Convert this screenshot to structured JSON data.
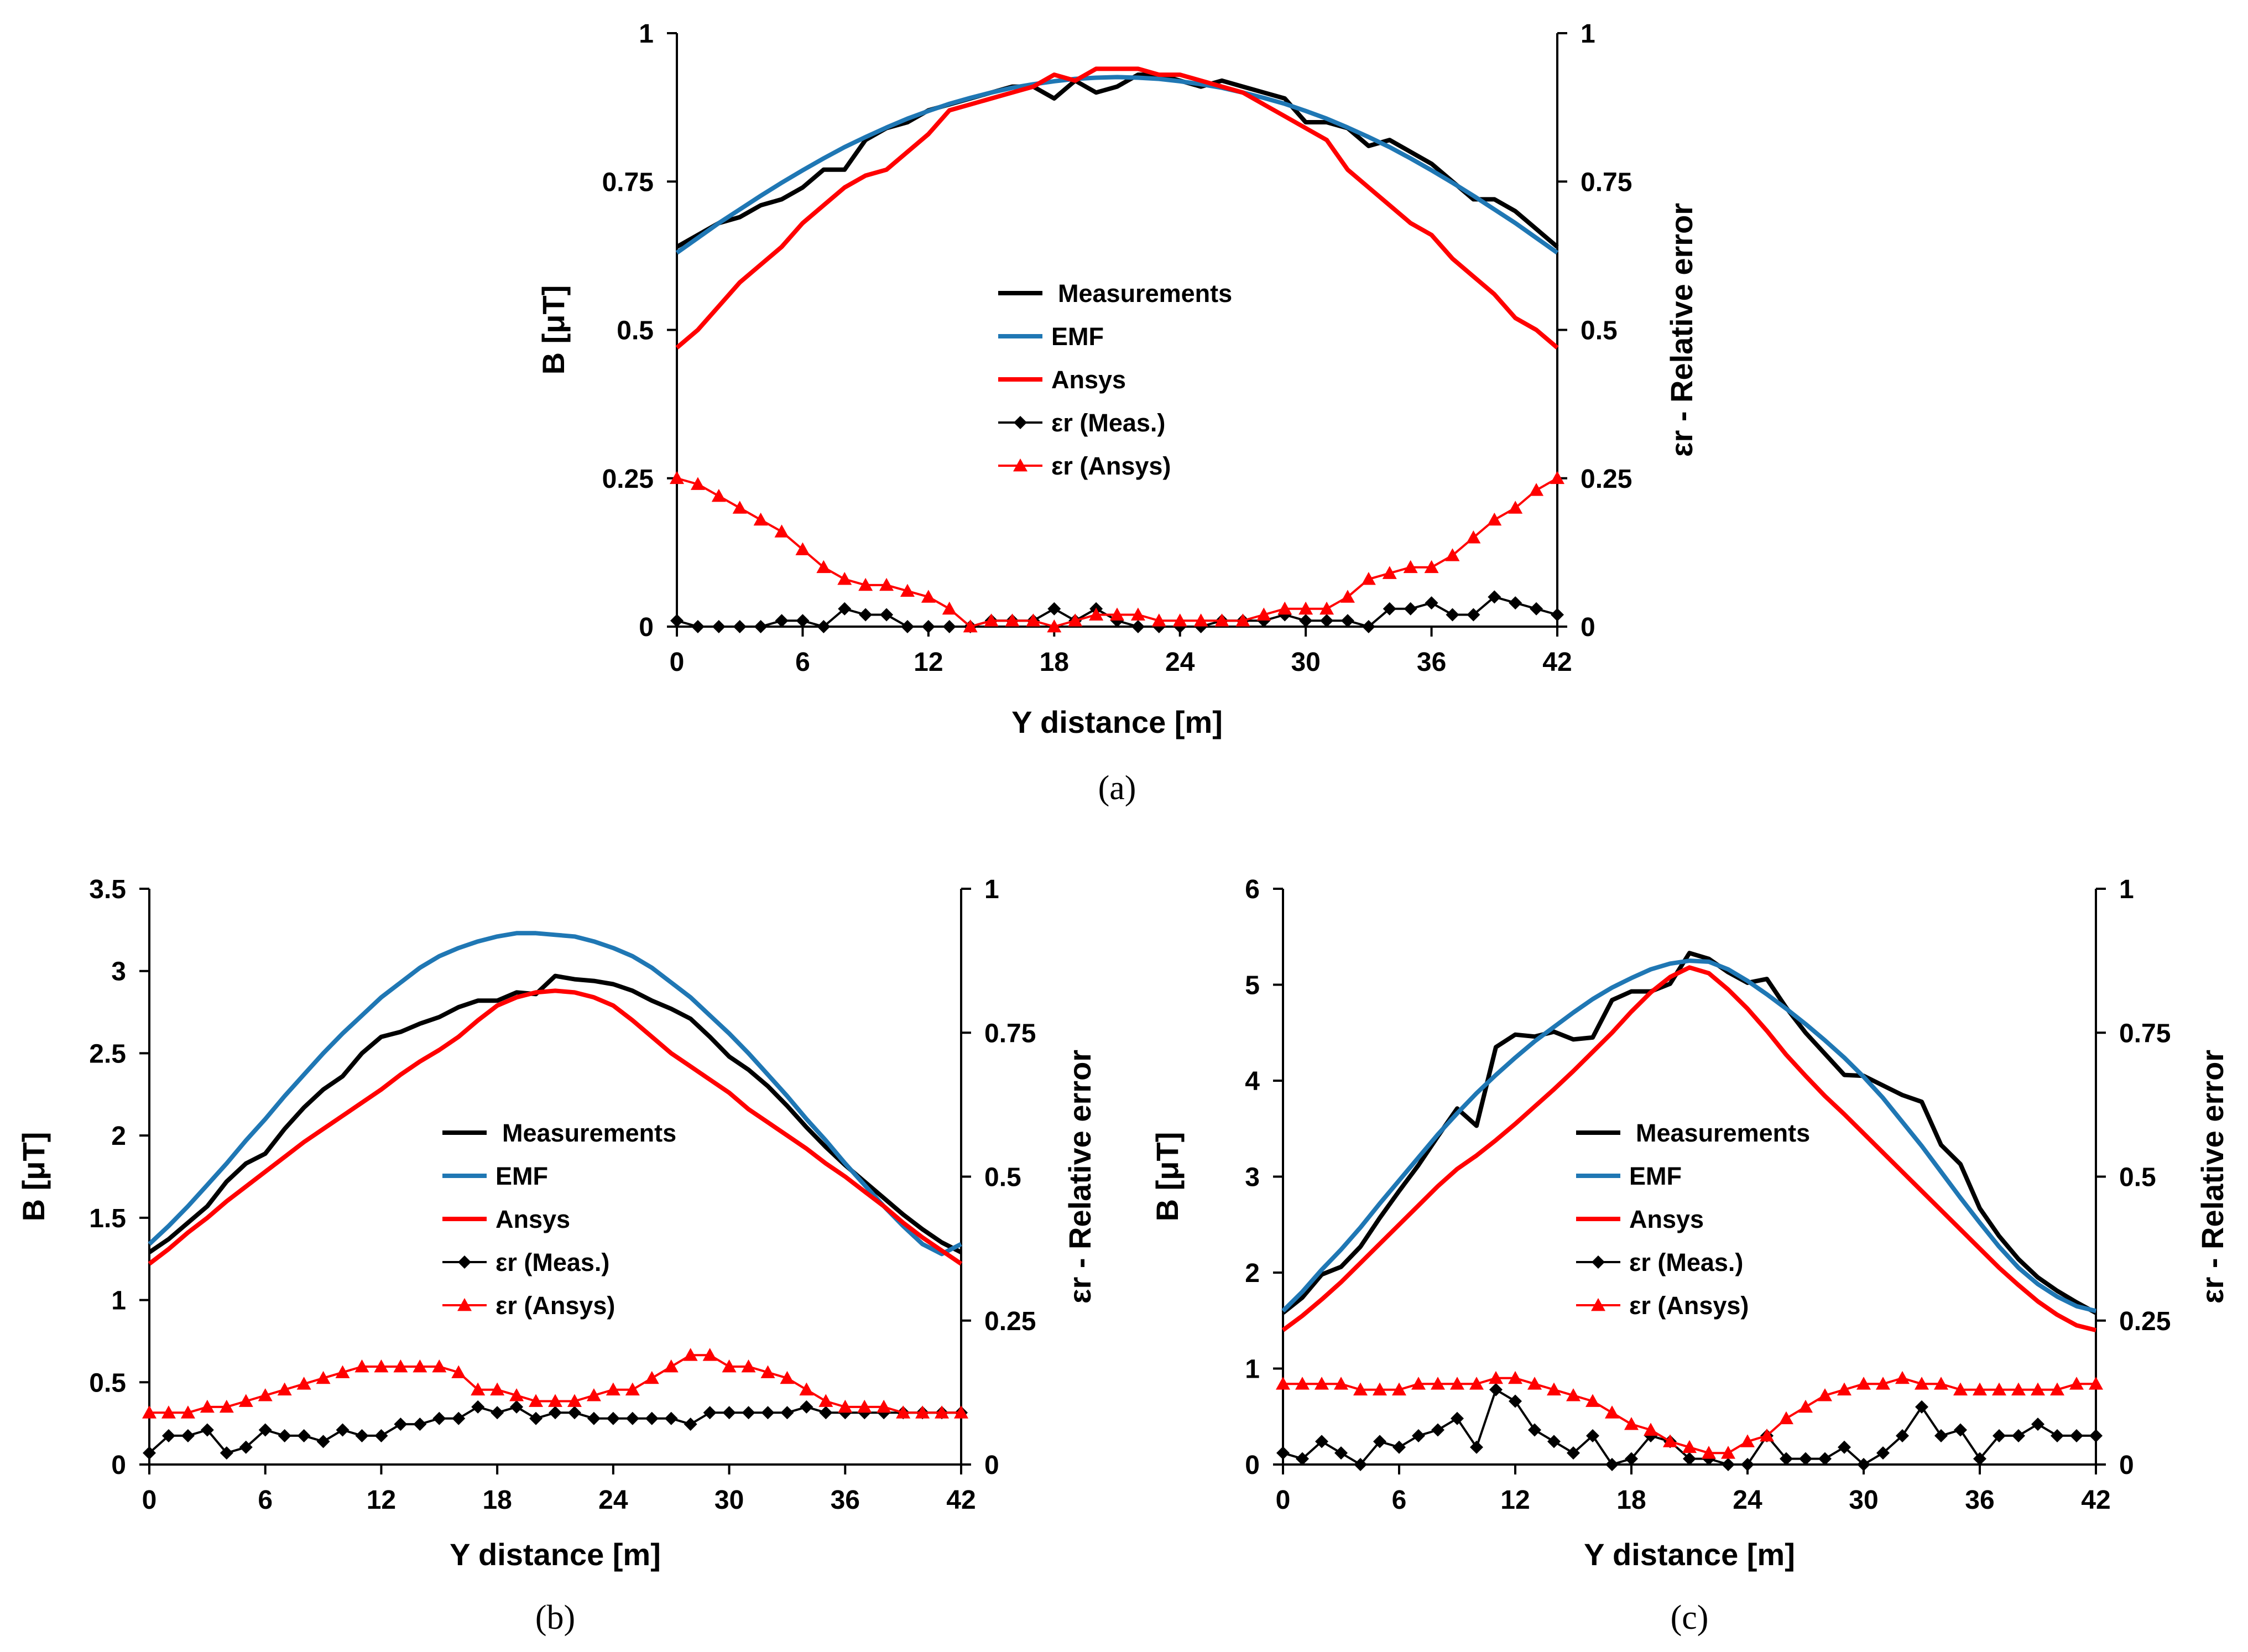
{
  "colors": {
    "black": "#000000",
    "blue": "#1f77b4",
    "red": "#ff0000"
  },
  "chart_data": [
    {
      "type": "line",
      "panel": "(a)",
      "xlabel": "Y distance [m]",
      "ylabel": "B [μT]",
      "y2label": "εr - Relative error",
      "xlim": [
        0,
        42
      ],
      "ylim": [
        0,
        1
      ],
      "y2lim": [
        0,
        1
      ],
      "xticks": [
        "0",
        "6",
        "12",
        "18",
        "24",
        "30",
        "36",
        "42"
      ],
      "yticks": [
        "0",
        "0.25",
        "0.5",
        "0.75",
        "1"
      ],
      "y2ticks": [
        "0",
        "0.25",
        "0.5",
        "0.75",
        "1"
      ],
      "legend": [
        "Measurements",
        "EMF",
        "Ansys",
        "εr (Meas.)",
        "εr (Ansys)"
      ],
      "legend_position": "center",
      "x": [
        0,
        1,
        2,
        3,
        4,
        5,
        6,
        7,
        8,
        9,
        10,
        11,
        12,
        13,
        14,
        15,
        16,
        17,
        18,
        19,
        20,
        21,
        22,
        23,
        24,
        25,
        26,
        27,
        28,
        29,
        30,
        31,
        32,
        33,
        34,
        35,
        36,
        37,
        38,
        39,
        40,
        41,
        42
      ],
      "series": [
        {
          "name": "Measurements",
          "axis": "left",
          "color": "black",
          "values": [
            0.64,
            0.66,
            0.68,
            0.69,
            0.71,
            0.72,
            0.74,
            0.77,
            0.77,
            0.82,
            0.84,
            0.85,
            0.87,
            0.88,
            0.89,
            0.9,
            0.91,
            0.91,
            0.89,
            0.92,
            0.9,
            0.91,
            0.93,
            0.93,
            0.92,
            0.91,
            0.92,
            0.91,
            0.9,
            0.89,
            0.85,
            0.85,
            0.84,
            0.81,
            0.82,
            0.8,
            0.78,
            0.75,
            0.72,
            0.72,
            0.7,
            0.67,
            0.64
          ]
        },
        {
          "name": "EMF",
          "axis": "left",
          "color": "blue",
          "values": [
            0.63,
            0.655,
            0.68,
            0.703,
            0.726,
            0.748,
            0.769,
            0.789,
            0.808,
            0.825,
            0.841,
            0.856,
            0.869,
            0.881,
            0.891,
            0.9,
            0.908,
            0.914,
            0.919,
            0.923,
            0.925,
            0.926,
            0.925,
            0.923,
            0.919,
            0.914,
            0.908,
            0.9,
            0.891,
            0.881,
            0.869,
            0.856,
            0.841,
            0.825,
            0.808,
            0.789,
            0.769,
            0.748,
            0.726,
            0.703,
            0.68,
            0.655,
            0.63
          ]
        },
        {
          "name": "Ansys",
          "axis": "left",
          "color": "red",
          "values": [
            0.47,
            0.5,
            0.54,
            0.58,
            0.61,
            0.64,
            0.68,
            0.71,
            0.74,
            0.76,
            0.77,
            0.8,
            0.83,
            0.87,
            0.88,
            0.89,
            0.9,
            0.91,
            0.93,
            0.92,
            0.94,
            0.94,
            0.94,
            0.93,
            0.93,
            0.92,
            0.91,
            0.9,
            0.88,
            0.86,
            0.84,
            0.82,
            0.77,
            0.74,
            0.71,
            0.68,
            0.66,
            0.62,
            0.59,
            0.56,
            0.52,
            0.5,
            0.47
          ]
        },
        {
          "name": "εr (Meas.)",
          "axis": "right",
          "color": "black",
          "marker": "diamond",
          "values": [
            0.01,
            0.0,
            0.0,
            0.0,
            0.0,
            0.01,
            0.01,
            0.0,
            0.03,
            0.02,
            0.02,
            0.0,
            0.0,
            0.0,
            0.0,
            0.01,
            0.01,
            0.01,
            0.03,
            0.01,
            0.03,
            0.01,
            0.0,
            0.0,
            0.0,
            0.0,
            0.01,
            0.01,
            0.01,
            0.02,
            0.01,
            0.01,
            0.01,
            0.0,
            0.03,
            0.03,
            0.04,
            0.02,
            0.02,
            0.05,
            0.04,
            0.03,
            0.02
          ]
        },
        {
          "name": "εr (Ansys)",
          "axis": "right",
          "color": "red",
          "marker": "triangle",
          "values": [
            0.25,
            0.24,
            0.22,
            0.2,
            0.18,
            0.16,
            0.13,
            0.1,
            0.08,
            0.07,
            0.07,
            0.06,
            0.05,
            0.03,
            0.0,
            0.01,
            0.01,
            0.01,
            0.0,
            0.01,
            0.02,
            0.02,
            0.02,
            0.01,
            0.01,
            0.01,
            0.01,
            0.01,
            0.02,
            0.03,
            0.03,
            0.03,
            0.05,
            0.08,
            0.09,
            0.1,
            0.1,
            0.12,
            0.15,
            0.18,
            0.2,
            0.23,
            0.25
          ]
        }
      ]
    },
    {
      "type": "line",
      "panel": "(b)",
      "xlabel": "Y distance [m]",
      "ylabel": "B [μT]",
      "y2label": "εr - Relative error",
      "xlim": [
        0,
        42
      ],
      "ylim": [
        0,
        3.5
      ],
      "y2lim": [
        0,
        1
      ],
      "xticks": [
        "0",
        "6",
        "12",
        "18",
        "24",
        "30",
        "36",
        "42"
      ],
      "yticks": [
        "0",
        "0.5",
        "1",
        "1.5",
        "2",
        "2.5",
        "3",
        "3.5"
      ],
      "y2ticks": [
        "0",
        "0.25",
        "0.5",
        "0.75",
        "1"
      ],
      "legend": [
        "Measurements",
        "EMF",
        "Ansys",
        "εr (Meas.)",
        "εr (Ansys)"
      ],
      "legend_position": "center",
      "x": [
        0,
        1,
        2,
        3,
        4,
        5,
        6,
        7,
        8,
        9,
        10,
        11,
        12,
        13,
        14,
        15,
        16,
        17,
        18,
        19,
        20,
        21,
        22,
        23,
        24,
        25,
        26,
        27,
        28,
        29,
        30,
        31,
        32,
        33,
        34,
        35,
        36,
        37,
        38,
        39,
        40,
        41,
        42
      ],
      "series": [
        {
          "name": "Measurements",
          "axis": "left",
          "color": "black",
          "values": [
            1.29,
            1.37,
            1.47,
            1.57,
            1.72,
            1.83,
            1.89,
            2.04,
            2.17,
            2.28,
            2.36,
            2.5,
            2.6,
            2.63,
            2.68,
            2.72,
            2.78,
            2.82,
            2.82,
            2.87,
            2.86,
            2.97,
            2.95,
            2.94,
            2.92,
            2.88,
            2.82,
            2.77,
            2.71,
            2.6,
            2.48,
            2.4,
            2.3,
            2.18,
            2.05,
            1.93,
            1.82,
            1.72,
            1.62,
            1.52,
            1.43,
            1.35,
            1.29
          ]
        },
        {
          "name": "EMF",
          "axis": "left",
          "color": "blue",
          "values": [
            1.34,
            1.45,
            1.57,
            1.7,
            1.83,
            1.97,
            2.1,
            2.24,
            2.37,
            2.5,
            2.62,
            2.73,
            2.84,
            2.93,
            3.02,
            3.09,
            3.14,
            3.18,
            3.21,
            3.23,
            3.23,
            3.22,
            3.21,
            3.18,
            3.14,
            3.09,
            3.02,
            2.93,
            2.84,
            2.73,
            2.62,
            2.5,
            2.37,
            2.24,
            2.1,
            1.97,
            1.83,
            1.7,
            1.57,
            1.45,
            1.34,
            1.28,
            1.34
          ]
        },
        {
          "name": "Ansys",
          "axis": "left",
          "color": "red",
          "values": [
            1.22,
            1.31,
            1.41,
            1.5,
            1.6,
            1.69,
            1.78,
            1.87,
            1.96,
            2.04,
            2.12,
            2.2,
            2.28,
            2.37,
            2.45,
            2.52,
            2.6,
            2.7,
            2.79,
            2.84,
            2.87,
            2.88,
            2.87,
            2.84,
            2.79,
            2.7,
            2.6,
            2.5,
            2.42,
            2.34,
            2.26,
            2.16,
            2.08,
            2.0,
            1.92,
            1.83,
            1.75,
            1.66,
            1.57,
            1.47,
            1.38,
            1.3,
            1.22
          ]
        },
        {
          "name": "εr (Meas.)",
          "axis": "right",
          "color": "black",
          "marker": "diamond",
          "values": [
            0.02,
            0.05,
            0.05,
            0.06,
            0.02,
            0.03,
            0.06,
            0.05,
            0.05,
            0.04,
            0.06,
            0.05,
            0.05,
            0.07,
            0.07,
            0.08,
            0.08,
            0.1,
            0.09,
            0.1,
            0.08,
            0.09,
            0.09,
            0.08,
            0.08,
            0.08,
            0.08,
            0.08,
            0.07,
            0.09,
            0.09,
            0.09,
            0.09,
            0.09,
            0.1,
            0.09,
            0.09,
            0.09,
            0.09,
            0.09,
            0.09,
            0.09,
            0.09
          ]
        },
        {
          "name": "εr (Ansys)",
          "axis": "right",
          "color": "red",
          "marker": "triangle",
          "values": [
            0.09,
            0.09,
            0.09,
            0.1,
            0.1,
            0.11,
            0.12,
            0.13,
            0.14,
            0.15,
            0.16,
            0.17,
            0.17,
            0.17,
            0.17,
            0.17,
            0.16,
            0.13,
            0.13,
            0.12,
            0.11,
            0.11,
            0.11,
            0.12,
            0.13,
            0.13,
            0.15,
            0.17,
            0.19,
            0.19,
            0.17,
            0.17,
            0.16,
            0.15,
            0.13,
            0.11,
            0.1,
            0.1,
            0.1,
            0.09,
            0.09,
            0.09,
            0.09
          ]
        }
      ]
    },
    {
      "type": "line",
      "panel": "(c)",
      "xlabel": "Y distance [m]",
      "ylabel": "B [μT]",
      "y2label": "εr - Relative error",
      "xlim": [
        0,
        42
      ],
      "ylim": [
        0,
        6
      ],
      "y2lim": [
        0,
        1
      ],
      "xticks": [
        "0",
        "6",
        "12",
        "18",
        "24",
        "30",
        "36",
        "42"
      ],
      "yticks": [
        "0",
        "1",
        "2",
        "3",
        "4",
        "5",
        "6"
      ],
      "y2ticks": [
        "0",
        "0.25",
        "0.5",
        "0.75",
        "1"
      ],
      "legend": [
        "Measurements",
        "EMF",
        "Ansys",
        "εr (Meas.)",
        "εr (Ansys)"
      ],
      "legend_position": "center",
      "x": [
        0,
        1,
        2,
        3,
        4,
        5,
        6,
        7,
        8,
        9,
        10,
        11,
        12,
        13,
        14,
        15,
        16,
        17,
        18,
        19,
        20,
        21,
        22,
        23,
        24,
        25,
        26,
        27,
        28,
        29,
        30,
        31,
        32,
        33,
        34,
        35,
        36,
        37,
        38,
        39,
        40,
        41,
        42
      ],
      "series": [
        {
          "name": "Measurements",
          "axis": "left",
          "color": "black",
          "values": [
            1.58,
            1.74,
            1.98,
            2.06,
            2.27,
            2.57,
            2.85,
            3.12,
            3.42,
            3.71,
            3.53,
            4.35,
            4.48,
            4.46,
            4.51,
            4.43,
            4.45,
            4.84,
            4.93,
            4.93,
            5.01,
            5.33,
            5.27,
            5.13,
            5.02,
            5.06,
            4.76,
            4.5,
            4.28,
            4.06,
            4.05,
            3.95,
            3.85,
            3.78,
            3.33,
            3.13,
            2.67,
            2.38,
            2.14,
            1.95,
            1.81,
            1.69,
            1.58
          ]
        },
        {
          "name": "EMF",
          "axis": "left",
          "color": "blue",
          "values": [
            1.6,
            1.8,
            2.03,
            2.24,
            2.47,
            2.72,
            2.96,
            3.2,
            3.44,
            3.66,
            3.87,
            4.06,
            4.24,
            4.41,
            4.56,
            4.71,
            4.85,
            4.97,
            5.07,
            5.16,
            5.22,
            5.25,
            5.24,
            5.16,
            5.04,
            4.9,
            4.75,
            4.59,
            4.42,
            4.24,
            4.04,
            3.82,
            3.57,
            3.32,
            3.05,
            2.78,
            2.52,
            2.27,
            2.05,
            1.88,
            1.75,
            1.65,
            1.6
          ]
        },
        {
          "name": "Ansys",
          "axis": "left",
          "color": "red",
          "values": [
            1.4,
            1.55,
            1.72,
            1.9,
            2.1,
            2.3,
            2.5,
            2.7,
            2.9,
            3.08,
            3.22,
            3.38,
            3.55,
            3.73,
            3.91,
            4.1,
            4.3,
            4.5,
            4.72,
            4.92,
            5.08,
            5.18,
            5.12,
            4.95,
            4.75,
            4.52,
            4.27,
            4.05,
            3.84,
            3.65,
            3.45,
            3.25,
            3.05,
            2.85,
            2.65,
            2.45,
            2.25,
            2.05,
            1.87,
            1.7,
            1.56,
            1.45,
            1.4
          ]
        },
        {
          "name": "εr (Meas.)",
          "axis": "right",
          "color": "black",
          "marker": "diamond",
          "values": [
            0.02,
            0.01,
            0.04,
            0.02,
            0.0,
            0.04,
            0.03,
            0.05,
            0.06,
            0.08,
            0.03,
            0.13,
            0.11,
            0.06,
            0.04,
            0.02,
            0.05,
            0.0,
            0.01,
            0.05,
            0.04,
            0.01,
            0.01,
            0.0,
            0.0,
            0.05,
            0.01,
            0.01,
            0.01,
            0.03,
            0.0,
            0.02,
            0.05,
            0.1,
            0.05,
            0.06,
            0.01,
            0.05,
            0.05,
            0.07,
            0.05,
            0.05,
            0.05
          ]
        },
        {
          "name": "εr (Ansys)",
          "axis": "right",
          "color": "red",
          "marker": "triangle",
          "values": [
            0.14,
            0.14,
            0.14,
            0.14,
            0.13,
            0.13,
            0.13,
            0.14,
            0.14,
            0.14,
            0.14,
            0.15,
            0.15,
            0.14,
            0.13,
            0.12,
            0.11,
            0.09,
            0.07,
            0.06,
            0.04,
            0.03,
            0.02,
            0.02,
            0.04,
            0.05,
            0.08,
            0.1,
            0.12,
            0.13,
            0.14,
            0.14,
            0.15,
            0.14,
            0.14,
            0.13,
            0.13,
            0.13,
            0.13,
            0.13,
            0.13,
            0.14,
            0.14
          ]
        }
      ]
    }
  ]
}
